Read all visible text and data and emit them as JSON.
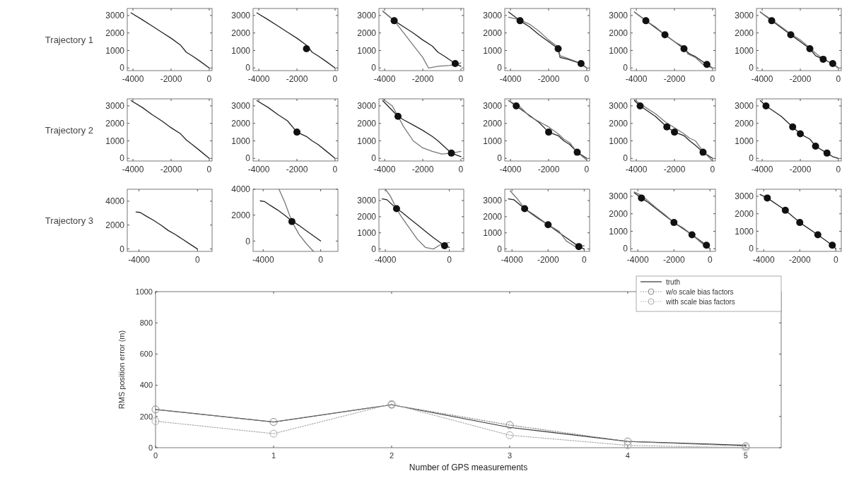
{
  "chart_data": [
    {
      "type": "line",
      "ylabel": "Trajectory 1",
      "xlim": [
        -4300,
        150
      ],
      "ylim": [
        -150,
        3400
      ],
      "xticks": [
        -4000,
        -2000,
        0
      ],
      "yticks": [
        0,
        1000,
        2000,
        3000
      ],
      "series": [
        {
          "type": "line",
          "color": "#222222",
          "x": [
            -4100,
            -3500,
            -3000,
            -2500,
            -2000,
            -1500,
            -1200,
            -900,
            -500,
            0
          ],
          "values": [
            3150,
            2750,
            2400,
            2050,
            1700,
            1300,
            900,
            700,
            400,
            0
          ]
        }
      ]
    },
    {
      "type": "line",
      "xlim": [
        -4300,
        150
      ],
      "ylim": [
        -150,
        3400
      ],
      "xticks": [
        -4000,
        -2000,
        0
      ],
      "yticks": [
        0,
        1000,
        2000,
        3000
      ],
      "series": [
        {
          "type": "line",
          "color": "#222222",
          "x": [
            -4100,
            -3500,
            -3000,
            -2500,
            -2000,
            -1500,
            -1200,
            -900,
            -500,
            0
          ],
          "values": [
            3150,
            2750,
            2400,
            2050,
            1700,
            1300,
            900,
            700,
            400,
            0
          ]
        },
        {
          "type": "scatter",
          "marker": "circle",
          "color": "#111111",
          "x": [
            -1500
          ],
          "values": [
            1100
          ]
        }
      ]
    },
    {
      "type": "line",
      "xlim": [
        -4300,
        150
      ],
      "ylim": [
        -150,
        3400
      ],
      "xticks": [
        -4000,
        -2000,
        0
      ],
      "yticks": [
        0,
        1000,
        2000,
        3000
      ],
      "series": [
        {
          "type": "line",
          "color": "#222222",
          "x": [
            -4100,
            -3500,
            -3000,
            -2500,
            -2000,
            -1500,
            -1200,
            -900,
            -300,
            0
          ],
          "values": [
            3250,
            2700,
            2350,
            2000,
            1600,
            1250,
            900,
            700,
            250,
            100
          ]
        },
        {
          "type": "line",
          "color": "#777777",
          "x": [
            -4100,
            -3500,
            -3000,
            -2500,
            -2000,
            -1700,
            -1200,
            -600,
            -200,
            0
          ],
          "values": [
            3250,
            2700,
            2000,
            1300,
            600,
            0,
            100,
            150,
            200,
            300
          ]
        },
        {
          "type": "scatter",
          "marker": "circle",
          "color": "#111111",
          "x": [
            -3500,
            -300
          ],
          "values": [
            2700,
            250
          ]
        }
      ]
    },
    {
      "type": "line",
      "xlim": [
        -4300,
        150
      ],
      "ylim": [
        -150,
        3400
      ],
      "xticks": [
        -4000,
        -2000,
        0
      ],
      "yticks": [
        0,
        1000,
        2000,
        3000
      ],
      "series": [
        {
          "type": "line",
          "color": "#222222",
          "x": [
            -4100,
            -3500,
            -3000,
            -2500,
            -2000,
            -1500,
            -1400,
            -1000,
            -300,
            0
          ],
          "values": [
            3200,
            2700,
            2350,
            1900,
            1500,
            1100,
            600,
            500,
            250,
            0
          ]
        },
        {
          "type": "line",
          "color": "#777777",
          "x": [
            -4100,
            -3500,
            -3000,
            -2500,
            -2000,
            -1500,
            -1400,
            -1000,
            -500,
            0
          ],
          "values": [
            2900,
            2750,
            2500,
            2100,
            1600,
            1200,
            700,
            550,
            350,
            0
          ]
        },
        {
          "type": "scatter",
          "marker": "circle",
          "color": "#111111",
          "x": [
            -3500,
            -1500,
            -300
          ],
          "values": [
            2700,
            1100,
            250
          ]
        }
      ]
    },
    {
      "type": "line",
      "xlim": [
        -4300,
        150
      ],
      "ylim": [
        -150,
        3400
      ],
      "xticks": [
        -4000,
        -2000,
        0
      ],
      "yticks": [
        0,
        1000,
        2000,
        3000
      ],
      "series": [
        {
          "type": "line",
          "color": "#222222",
          "x": [
            -4100,
            -3500,
            -3000,
            -2500,
            -2000,
            -1500,
            -1200,
            -900,
            -300,
            0
          ],
          "values": [
            3200,
            2700,
            2300,
            1900,
            1500,
            1100,
            800,
            650,
            200,
            0
          ]
        },
        {
          "type": "line",
          "color": "#777777",
          "x": [
            -4100,
            -3500,
            -3000,
            -2500,
            -2000,
            -1500,
            -1300,
            -900,
            -500,
            0
          ],
          "values": [
            3200,
            2700,
            2350,
            1900,
            1500,
            1200,
            800,
            600,
            200,
            0
          ]
        },
        {
          "type": "scatter",
          "marker": "circle",
          "color": "#111111",
          "x": [
            -3500,
            -2500,
            -1500,
            -300
          ],
          "values": [
            2700,
            1900,
            1100,
            200
          ]
        }
      ]
    },
    {
      "type": "line",
      "xlim": [
        -4300,
        150
      ],
      "ylim": [
        -150,
        3400
      ],
      "xticks": [
        -4000,
        -2000,
        0
      ],
      "yticks": [
        0,
        1000,
        2000,
        3000
      ],
      "series": [
        {
          "type": "line",
          "color": "#222222",
          "x": [
            -4100,
            -3500,
            -3000,
            -2500,
            -2000,
            -1500,
            -1200,
            -800,
            -300,
            0
          ],
          "values": [
            3200,
            2700,
            2300,
            1900,
            1500,
            1100,
            700,
            500,
            250,
            0
          ]
        },
        {
          "type": "line",
          "color": "#777777",
          "x": [
            -4100,
            -3500,
            -3000,
            -2500,
            -2000,
            -1500,
            -1200,
            -900,
            -500,
            0
          ],
          "values": [
            3200,
            2750,
            2350,
            1950,
            1600,
            1150,
            850,
            600,
            350,
            0
          ]
        },
        {
          "type": "scatter",
          "marker": "circle",
          "color": "#111111",
          "x": [
            -3500,
            -2500,
            -1500,
            -800,
            -300
          ],
          "values": [
            2700,
            1900,
            1100,
            500,
            250
          ]
        }
      ]
    },
    {
      "type": "line",
      "ylabel": "Trajectory 2",
      "xlim": [
        -4300,
        150
      ],
      "ylim": [
        -150,
        3400
      ],
      "xticks": [
        {
          "value": -4000,
          "label": "-4000"
        },
        {
          "value": -2000,
          "label": "-2000"
        },
        0
      ],
      "yticks": [
        0,
        1000,
        2000,
        3000
      ],
      "series": [
        {
          "type": "line",
          "color": "#222222",
          "x": [
            -4100,
            -3500,
            -3000,
            -2500,
            -2000,
            -1500,
            -1200,
            -900,
            -500,
            0
          ],
          "values": [
            3300,
            2900,
            2500,
            2150,
            1750,
            1400,
            1050,
            800,
            450,
            0
          ]
        }
      ]
    },
    {
      "type": "line",
      "xlim": [
        -4300,
        150
      ],
      "ylim": [
        -150,
        3400
      ],
      "xticks": [
        -4000,
        -2000,
        0
      ],
      "yticks": [
        0,
        1000,
        2000,
        3000
      ],
      "series": [
        {
          "type": "line",
          "color": "#222222",
          "x": [
            -4100,
            -3500,
            -3000,
            -2500,
            -2000,
            -1500,
            -1200,
            -900,
            -500,
            0
          ],
          "values": [
            3300,
            2900,
            2500,
            2150,
            1500,
            1250,
            1000,
            800,
            450,
            0
          ]
        },
        {
          "type": "scatter",
          "marker": "circle",
          "color": "#111111",
          "x": [
            -2000
          ],
          "values": [
            1500
          ]
        }
      ]
    },
    {
      "type": "line",
      "xlim": [
        -4300,
        150
      ],
      "ylim": [
        -150,
        3400
      ],
      "xticks": [
        -4000,
        -2000,
        0
      ],
      "yticks": [
        0,
        1000,
        2000,
        3000
      ],
      "series": [
        {
          "type": "line",
          "color": "#222222",
          "x": [
            -4100,
            -3300,
            -3000,
            -2500,
            -2000,
            -1500,
            -1200,
            -900,
            -500,
            0
          ],
          "values": [
            3300,
            2400,
            2200,
            1900,
            1600,
            1250,
            1000,
            700,
            300,
            100
          ]
        },
        {
          "type": "line",
          "color": "#777777",
          "x": [
            -4100,
            -3600,
            -3300,
            -3000,
            -2500,
            -2000,
            -1500,
            -1000,
            -500,
            0
          ],
          "values": [
            3400,
            3000,
            2400,
            1800,
            1000,
            600,
            400,
            250,
            300,
            400
          ]
        },
        {
          "type": "scatter",
          "marker": "circle",
          "color": "#111111",
          "x": [
            -3300,
            -500
          ],
          "values": [
            2400,
            300
          ]
        }
      ]
    },
    {
      "type": "line",
      "xlim": [
        -4300,
        150
      ],
      "ylim": [
        -150,
        3400
      ],
      "xticks": [
        -4000,
        -2000,
        0
      ],
      "yticks": [
        0,
        1000,
        2000,
        3000
      ],
      "series": [
        {
          "type": "line",
          "color": "#222222",
          "x": [
            -4100,
            -3700,
            -3000,
            -2500,
            -2000,
            -1500,
            -1200,
            -900,
            -500,
            0
          ],
          "values": [
            3300,
            3000,
            2450,
            2050,
            1500,
            1300,
            1000,
            800,
            350,
            0
          ]
        },
        {
          "type": "line",
          "color": "#777777",
          "x": [
            -4100,
            -3500,
            -3000,
            -2500,
            -2000,
            -1500,
            -1200,
            -900,
            -500,
            0
          ],
          "values": [
            3300,
            2950,
            2400,
            2100,
            1800,
            1400,
            1100,
            900,
            350,
            -100
          ]
        },
        {
          "type": "scatter",
          "marker": "circle",
          "color": "#111111",
          "x": [
            -3700,
            -2000,
            -500
          ],
          "values": [
            3000,
            1500,
            350
          ]
        }
      ]
    },
    {
      "type": "line",
      "xlim": [
        -4300,
        150
      ],
      "ylim": [
        -150,
        3400
      ],
      "xticks": [
        -4000,
        -2000,
        0
      ],
      "yticks": [
        0,
        1000,
        2000,
        3000
      ],
      "series": [
        {
          "type": "line",
          "color": "#222222",
          "x": [
            -4100,
            -3800,
            -3000,
            -2400,
            -2000,
            -1500,
            -1200,
            -900,
            -500,
            0
          ],
          "values": [
            3300,
            3000,
            2400,
            1800,
            1500,
            1300,
            1000,
            750,
            350,
            0
          ]
        },
        {
          "type": "line",
          "color": "#777777",
          "x": [
            -4100,
            -3500,
            -3000,
            -2500,
            -2000,
            -1500,
            -1200,
            -900,
            -500,
            0
          ],
          "values": [
            3350,
            2900,
            2550,
            2100,
            1750,
            1400,
            1150,
            1000,
            400,
            -150
          ]
        },
        {
          "type": "scatter",
          "marker": "circle",
          "color": "#111111",
          "x": [
            -3800,
            -2400,
            -2000,
            -500
          ],
          "values": [
            3000,
            1800,
            1500,
            350
          ]
        }
      ]
    },
    {
      "type": "line",
      "xlim": [
        -4300,
        150
      ],
      "ylim": [
        -150,
        3400
      ],
      "xticks": [
        -4000,
        -2000,
        0
      ],
      "yticks": [
        0,
        1000,
        2000,
        3000
      ],
      "series": [
        {
          "type": "line",
          "color": "#222222",
          "x": [
            -4100,
            -3800,
            -3000,
            -2400,
            -2000,
            -1500,
            -1200,
            -600,
            -300,
            0
          ],
          "values": [
            3300,
            3000,
            2400,
            1800,
            1400,
            1100,
            700,
            300,
            100,
            0
          ]
        },
        {
          "type": "scatter",
          "marker": "circle",
          "color": "#111111",
          "x": [
            -3800,
            -2400,
            -2000,
            -1200,
            -600
          ],
          "values": [
            3000,
            1800,
            1400,
            700,
            300
          ]
        }
      ]
    },
    {
      "type": "line",
      "ylabel": "Trajectory 3",
      "xlim": [
        -4800,
        1000
      ],
      "ylim": [
        -200,
        5000
      ],
      "xticks": [
        -4000,
        0
      ],
      "yticks": [
        0,
        2000,
        4000
      ],
      "series": [
        {
          "type": "line",
          "color": "#222222",
          "x": [
            -4200,
            -3900,
            -3500,
            -3000,
            -2500,
            -2000,
            -1500,
            -1000,
            -500,
            0
          ],
          "values": [
            3100,
            3050,
            2750,
            2400,
            2000,
            1550,
            1200,
            800,
            400,
            0
          ]
        }
      ]
    },
    {
      "type": "line",
      "xlim": [
        -4700,
        1200
      ],
      "ylim": [
        -800,
        4000
      ],
      "xticks": [
        -4000,
        0
      ],
      "yticks": [
        0,
        2000,
        4000
      ],
      "series": [
        {
          "type": "line",
          "color": "#222222",
          "x": [
            -4200,
            -3900,
            -3500,
            -3000,
            -2500,
            -2000,
            -1500,
            -1000,
            -500,
            0
          ],
          "values": [
            3100,
            3050,
            2750,
            2400,
            2000,
            1550,
            1200,
            800,
            400,
            0
          ]
        },
        {
          "type": "line",
          "color": "#777777",
          "x": [
            -2900,
            -2500,
            -2000,
            -1500,
            -1000,
            -500
          ],
          "values": [
            4000,
            3000,
            1500,
            500,
            -200,
            -800
          ]
        },
        {
          "type": "scatter",
          "marker": "circle",
          "color": "#111111",
          "x": [
            -2000
          ],
          "values": [
            1500
          ]
        }
      ]
    },
    {
      "type": "line",
      "xlim": [
        -4400,
        900
      ],
      "ylim": [
        -150,
        3700
      ],
      "xticks": [
        -4000,
        0
      ],
      "yticks": [
        0,
        1000,
        2000,
        3000
      ],
      "series": [
        {
          "type": "line",
          "color": "#222222",
          "x": [
            -4200,
            -3900,
            -3300,
            -3000,
            -2500,
            -2000,
            -1500,
            -1000,
            -300,
            0
          ],
          "values": [
            3100,
            3050,
            2500,
            2300,
            1900,
            1500,
            1100,
            700,
            200,
            100
          ]
        },
        {
          "type": "line",
          "color": "#777777",
          "x": [
            -4000,
            -3700,
            -3300,
            -3000,
            -2500,
            -2000,
            -1500,
            -1000,
            -500,
            0
          ],
          "values": [
            3700,
            3300,
            2500,
            2000,
            1300,
            600,
            100,
            0,
            300,
            400
          ]
        },
        {
          "type": "scatter",
          "marker": "circle",
          "color": "#111111",
          "x": [
            -3300,
            -300
          ],
          "values": [
            2500,
            200
          ]
        }
      ]
    },
    {
      "type": "line",
      "xlim": [
        -4400,
        300
      ],
      "ylim": [
        -150,
        3700
      ],
      "xticks": [
        -4000,
        -2000,
        0
      ],
      "yticks": [
        0,
        1000,
        2000,
        3000
      ],
      "series": [
        {
          "type": "line",
          "color": "#222222",
          "x": [
            -4200,
            -3900,
            -3300,
            -3000,
            -2500,
            -2000,
            -1500,
            -1000,
            -300,
            0
          ],
          "values": [
            3100,
            3050,
            2500,
            2250,
            1850,
            1500,
            1100,
            700,
            150,
            0
          ]
        },
        {
          "type": "line",
          "color": "#777777",
          "x": [
            -4100,
            -3700,
            -3300,
            -2800,
            -2000,
            -1400,
            -1000,
            -500,
            0
          ],
          "values": [
            3600,
            3100,
            2500,
            2150,
            1500,
            1100,
            500,
            150,
            200
          ]
        },
        {
          "type": "scatter",
          "marker": "circle",
          "color": "#111111",
          "x": [
            -3300,
            -2000,
            -300
          ],
          "values": [
            2500,
            1500,
            150
          ]
        }
      ]
    },
    {
      "type": "line",
      "xlim": [
        -4400,
        300
      ],
      "ylim": [
        -150,
        3400
      ],
      "xticks": [
        -4000,
        -2000,
        0
      ],
      "yticks": [
        0,
        1000,
        2000,
        3000
      ],
      "series": [
        {
          "type": "line",
          "color": "#222222",
          "x": [
            -4200,
            -3800,
            -3500,
            -3000,
            -2500,
            -2000,
            -1500,
            -1000,
            -200,
            0
          ],
          "values": [
            3200,
            2900,
            2700,
            2300,
            1900,
            1500,
            1150,
            800,
            200,
            0
          ]
        },
        {
          "type": "line",
          "color": "#777777",
          "x": [
            -4200,
            -3900,
            -3500,
            -3000,
            -2500,
            -2000,
            -1500,
            -1000,
            -500,
            0
          ],
          "values": [
            3250,
            3100,
            2800,
            2350,
            1950,
            1500,
            1200,
            800,
            350,
            0
          ]
        },
        {
          "type": "scatter",
          "marker": "circle",
          "color": "#111111",
          "x": [
            -3800,
            -2000,
            -1000,
            -200
          ],
          "values": [
            2900,
            1500,
            800,
            200
          ]
        }
      ]
    },
    {
      "type": "line",
      "xlim": [
        -4400,
        300
      ],
      "ylim": [
        -150,
        3400
      ],
      "xticks": [
        -4000,
        -2000,
        0
      ],
      "yticks": [
        0,
        1000,
        2000,
        3000
      ],
      "series": [
        {
          "type": "line",
          "color": "#222222",
          "x": [
            -4200,
            -3800,
            -2800,
            -2000,
            -1000,
            -200,
            0
          ],
          "values": [
            3100,
            2900,
            2200,
            1500,
            800,
            200,
            0
          ]
        },
        {
          "type": "scatter",
          "marker": "circle",
          "color": "#111111",
          "x": [
            -3800,
            -2800,
            -2000,
            -1000,
            -200
          ],
          "values": [
            2900,
            2200,
            1500,
            800,
            200
          ]
        }
      ]
    },
    {
      "type": "line",
      "xlabel": "Number of GPS measurements",
      "ylabel": "RMS position error (m)",
      "x": [
        0,
        1,
        2,
        3,
        4,
        5
      ],
      "xlim": [
        0,
        5.3
      ],
      "ylim": [
        0,
        1000
      ],
      "xticks": [
        0,
        1,
        2,
        3,
        4,
        5
      ],
      "yticks": [
        0,
        200,
        400,
        600,
        800,
        1000
      ],
      "legend": "top right",
      "series": [
        {
          "name": "truth",
          "color": "#333333",
          "line_style": "solid",
          "marker": "none",
          "values": [
            245,
            165,
            275,
            130,
            40,
            15
          ]
        },
        {
          "name": "w/o scale bias factors",
          "color": "#888888",
          "line_style": "dotted",
          "marker": "circle",
          "values": [
            245,
            165,
            275,
            145,
            40,
            10
          ]
        },
        {
          "name": "with scale bias factors",
          "color": "#aaaaaa",
          "line_style": "dotted",
          "marker": "circle",
          "values": [
            170,
            90,
            280,
            80,
            15,
            0
          ]
        }
      ]
    }
  ]
}
